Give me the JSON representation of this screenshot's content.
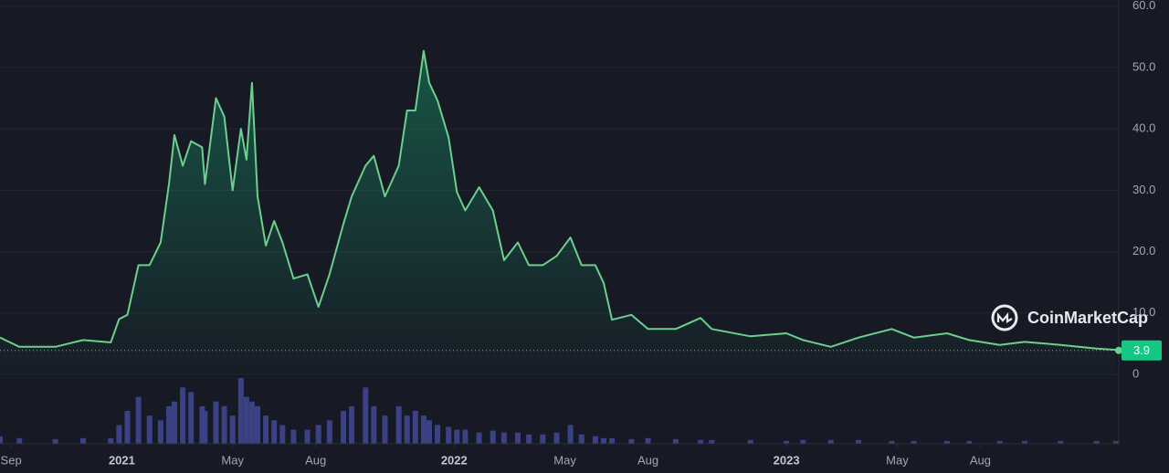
{
  "chart_data": {
    "type": "line",
    "watermark": "CoinMarketCap",
    "x": [
      -0.4,
      0.3,
      1.6,
      2.6,
      3.6,
      3.9,
      4.2,
      4.6,
      5.0,
      5.4,
      5.7,
      5.9,
      6.2,
      6.5,
      6.9,
      7.0,
      7.4,
      7.7,
      8.0,
      8.3,
      8.5,
      8.7,
      8.9,
      9.2,
      9.5,
      9.8,
      10.2,
      10.7,
      11.1,
      11.5,
      12.0,
      12.3,
      12.8,
      13.1,
      13.5,
      14.0,
      14.3,
      14.6,
      14.9,
      15.1,
      15.4,
      15.8,
      16.1,
      16.4,
      16.9,
      17.4,
      17.8,
      18.3,
      18.7,
      19.2,
      19.7,
      20.2,
      20.6,
      21.1,
      21.4,
      21.7,
      22.4,
      23.0,
      24.0,
      24.9,
      25.3,
      26.7,
      28.0,
      28.6,
      29.6,
      30.6,
      31.8,
      32.6,
      33.8,
      34.6,
      35.7,
      36.6,
      37.9,
      39.2,
      39.9
    ],
    "series": [
      {
        "color": "#6ccf8e",
        "values": [
          6,
          4.5,
          4.5,
          5.6,
          5.2,
          9,
          9.7,
          17.8,
          17.8,
          21.5,
          31,
          39,
          34,
          38,
          37,
          31,
          45,
          42,
          30,
          40,
          35,
          47.5,
          29,
          21,
          25,
          21.5,
          15.6,
          16.3,
          11,
          16.3,
          24.5,
          29,
          34,
          35.6,
          29,
          34,
          43,
          43,
          52.7,
          47.5,
          44.6,
          38.6,
          29.7,
          26.7,
          30.5,
          26.7,
          18.6,
          21.5,
          17.8,
          17.8,
          19.3,
          22.3,
          17.8,
          17.8,
          14.9,
          8.9,
          9.7,
          7.4,
          7.4,
          9.2,
          7.4,
          6.2,
          6.7,
          5.6,
          4.5,
          6,
          7.4,
          6,
          6.7,
          5.6,
          4.8,
          5.3,
          4.8,
          4.2,
          4.0
        ]
      },
      {
        "color": "#3b4283",
        "values": [
          8,
          6,
          5,
          6,
          6,
          20,
          35,
          50,
          30,
          25,
          40,
          45,
          60,
          55,
          40,
          35,
          45,
          40,
          30,
          70,
          50,
          45,
          40,
          30,
          25,
          20,
          15,
          15,
          20,
          25,
          35,
          40,
          60,
          40,
          30,
          40,
          30,
          35,
          30,
          25,
          20,
          18,
          15,
          15,
          12,
          14,
          12,
          12,
          10,
          10,
          12,
          20,
          10,
          8,
          6,
          6,
          5,
          6,
          5,
          4,
          4,
          4,
          3,
          4,
          4,
          4,
          3,
          3,
          3,
          3,
          3,
          3,
          3,
          3,
          3
        ]
      }
    ],
    "current_price": 3.9,
    "xlim": [
      -0.4,
      40
    ],
    "xticks": [
      {
        "value": 0,
        "label": "Sep"
      },
      {
        "value": 4,
        "label": "2021"
      },
      {
        "value": 8,
        "label": "May"
      },
      {
        "value": 11,
        "label": "Aug"
      },
      {
        "value": 16,
        "label": "2022"
      },
      {
        "value": 20,
        "label": "May"
      },
      {
        "value": 23,
        "label": "Aug"
      },
      {
        "value": 28,
        "label": "2023"
      },
      {
        "value": 32,
        "label": "May"
      },
      {
        "value": 35,
        "label": "Aug"
      }
    ],
    "ylim": [
      0,
      61
    ],
    "yticks": [
      0,
      {
        "value": 10,
        "label": "10.0"
      },
      {
        "value": 20,
        "label": "20.0"
      },
      {
        "value": 30,
        "label": "30.0"
      },
      {
        "value": 40,
        "label": "40.0"
      },
      {
        "value": 50,
        "label": "50.0"
      },
      {
        "value": 60,
        "label": "60.0"
      }
    ],
    "grid": true
  }
}
